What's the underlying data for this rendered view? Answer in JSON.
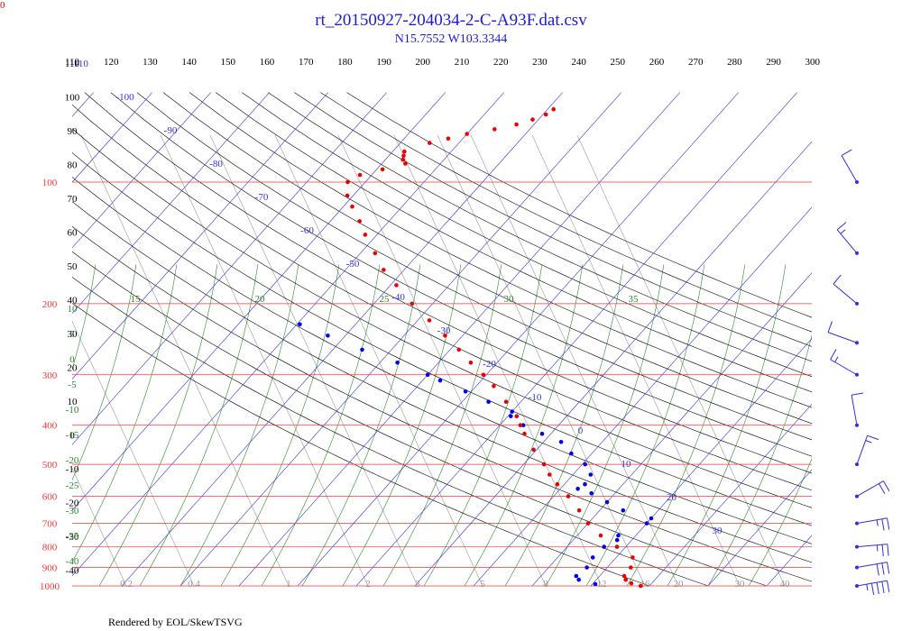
{
  "corner_label": "0",
  "title": "rt_20150927-204034-2-C-A93F.dat.csv",
  "subtitle": "N15.7552 W103.3344",
  "footer": "Rendered by EOL/SkewTSVG",
  "colors": {
    "temperature": "#ee0000",
    "dewpoint": "#0000ee",
    "isobar": "#ff3333",
    "isotherm": "#3333dd",
    "dry_adiabat": "#000000",
    "moist_adiabat": "#2a8a2a",
    "mixing_ratio": "#9a9a9a",
    "wind_barb": "#3030dd"
  },
  "chart_data": {
    "type": "scatter",
    "kind": "skew-T log-p diagram",
    "ylabel_scale": "log",
    "ylim": [
      1000,
      100
    ],
    "pressure_levels": [
      100,
      200,
      300,
      400,
      500,
      600,
      700,
      800,
      900,
      1000
    ],
    "potential_temperature_labels": [
      110,
      120,
      130,
      140,
      150,
      160,
      170,
      180,
      190,
      200,
      210,
      220,
      230,
      240,
      250,
      260,
      270,
      280,
      290,
      300
    ],
    "altitude_left_labels": [
      110,
      100,
      90,
      80,
      70,
      60,
      50,
      40,
      30,
      20,
      10,
      0,
      -10,
      -20,
      -30,
      -40
    ],
    "isotherm_labels": [
      -110,
      -100,
      -90,
      -80,
      -70,
      -60,
      -50,
      -40,
      -30,
      -20,
      -10,
      0,
      10,
      20,
      30
    ],
    "moist_adiabat_labels": [
      15,
      20,
      25,
      30,
      35
    ],
    "moist_left_labels": [
      10,
      5,
      0,
      -5,
      -10,
      -15,
      -20,
      -25,
      -30,
      -35,
      -40
    ],
    "mixing_ratio_labels": [
      "0.2",
      "0.4",
      "1",
      "2",
      "3",
      "5",
      "8",
      "12",
      "16",
      "20",
      "30",
      "40"
    ],
    "temperature": [
      {
        "p": 1000,
        "t": 28.5
      },
      {
        "p": 985,
        "t": 26.5
      },
      {
        "p": 965,
        "t": 25.0
      },
      {
        "p": 945,
        "t": 24.2
      },
      {
        "p": 900,
        "t": 24.0
      },
      {
        "p": 850,
        "t": 22.8
      },
      {
        "p": 800,
        "t": 18.5
      },
      {
        "p": 750,
        "t": 14.0
      },
      {
        "p": 700,
        "t": 10.0
      },
      {
        "p": 650,
        "t": 6.5
      },
      {
        "p": 600,
        "t": 2.5
      },
      {
        "p": 560,
        "t": -1.2
      },
      {
        "p": 530,
        "t": -4.0
      },
      {
        "p": 500,
        "t": -6.5
      },
      {
        "p": 460,
        "t": -10.5
      },
      {
        "p": 420,
        "t": -14.5
      },
      {
        "p": 400,
        "t": -16.5
      },
      {
        "p": 380,
        "t": -18.5
      },
      {
        "p": 350,
        "t": -22.5
      },
      {
        "p": 320,
        "t": -27.0
      },
      {
        "p": 300,
        "t": -30.5
      },
      {
        "p": 280,
        "t": -34.5
      },
      {
        "p": 260,
        "t": -38.5
      },
      {
        "p": 240,
        "t": -43.0
      },
      {
        "p": 220,
        "t": -48.0
      },
      {
        "p": 200,
        "t": -53.5
      },
      {
        "p": 180,
        "t": -59.0
      },
      {
        "p": 165,
        "t": -63.5
      },
      {
        "p": 150,
        "t": -67.5
      },
      {
        "p": 135,
        "t": -72.0
      },
      {
        "p": 125,
        "t": -75.0
      },
      {
        "p": 115,
        "t": -78.5
      },
      {
        "p": 108,
        "t": -81.0
      },
      {
        "p": 100,
        "t": -83.0
      },
      {
        "p": 96,
        "t": -82.0
      },
      {
        "p": 93,
        "t": -79.0
      },
      {
        "p": 90,
        "t": -76.0
      },
      {
        "p": 88,
        "t": -77.0
      },
      {
        "p": 86,
        "t": -77.5
      },
      {
        "p": 84,
        "t": -78.0
      },
      {
        "p": 80,
        "t": -75.0
      },
      {
        "p": 78,
        "t": -72.5
      },
      {
        "p": 76,
        "t": -70.0
      },
      {
        "p": 74,
        "t": -66.0
      },
      {
        "p": 72,
        "t": -63.0
      },
      {
        "p": 70,
        "t": -61.0
      },
      {
        "p": 68,
        "t": -59.5
      },
      {
        "p": 66,
        "t": -59.0
      }
    ],
    "dewpoint": [
      {
        "p": 990,
        "t": 20.5
      },
      {
        "p": 965,
        "t": 17.0
      },
      {
        "p": 945,
        "t": 16.0
      },
      {
        "p": 900,
        "t": 16.5
      },
      {
        "p": 850,
        "t": 16.0
      },
      {
        "p": 800,
        "t": 16.3
      },
      {
        "p": 770,
        "t": 17.5
      },
      {
        "p": 750,
        "t": 17.0
      },
      {
        "p": 700,
        "t": 20.0
      },
      {
        "p": 680,
        "t": 20.0
      },
      {
        "p": 650,
        "t": 14.0
      },
      {
        "p": 620,
        "t": 10.0
      },
      {
        "p": 590,
        "t": 6.0
      },
      {
        "p": 575,
        "t": 3.0
      },
      {
        "p": 560,
        "t": 3.5
      },
      {
        "p": 530,
        "t": 3.0
      },
      {
        "p": 500,
        "t": 0.5
      },
      {
        "p": 470,
        "t": -3.5
      },
      {
        "p": 440,
        "t": -7.0
      },
      {
        "p": 420,
        "t": -11.5
      },
      {
        "p": 400,
        "t": -16.0
      },
      {
        "p": 380,
        "t": -19.5
      },
      {
        "p": 370,
        "t": -20.0
      },
      {
        "p": 350,
        "t": -25.5
      },
      {
        "p": 330,
        "t": -31.0
      },
      {
        "p": 310,
        "t": -37.0
      },
      {
        "p": 300,
        "t": -40.0
      },
      {
        "p": 280,
        "t": -47.0
      },
      {
        "p": 260,
        "t": -55.0
      },
      {
        "p": 240,
        "t": -63.0
      },
      {
        "p": 225,
        "t": -69.5
      }
    ],
    "wind_barbs": [
      {
        "p": 1000,
        "speed_kt": 45,
        "direction": 80
      },
      {
        "p": 900,
        "speed_kt": 30,
        "direction": 80
      },
      {
        "p": 800,
        "speed_kt": 25,
        "direction": 85
      },
      {
        "p": 700,
        "speed_kt": 25,
        "direction": 80
      },
      {
        "p": 600,
        "speed_kt": 20,
        "direction": 60
      },
      {
        "p": 500,
        "speed_kt": 15,
        "direction": 20
      },
      {
        "p": 400,
        "speed_kt": 10,
        "direction": 350
      },
      {
        "p": 300,
        "speed_kt": 15,
        "direction": 300
      },
      {
        "p": 250,
        "speed_kt": 10,
        "direction": 290
      },
      {
        "p": 200,
        "speed_kt": 10,
        "direction": 310
      },
      {
        "p": 150,
        "speed_kt": 15,
        "direction": 320
      },
      {
        "p": 100,
        "speed_kt": 10,
        "direction": 330
      }
    ]
  }
}
